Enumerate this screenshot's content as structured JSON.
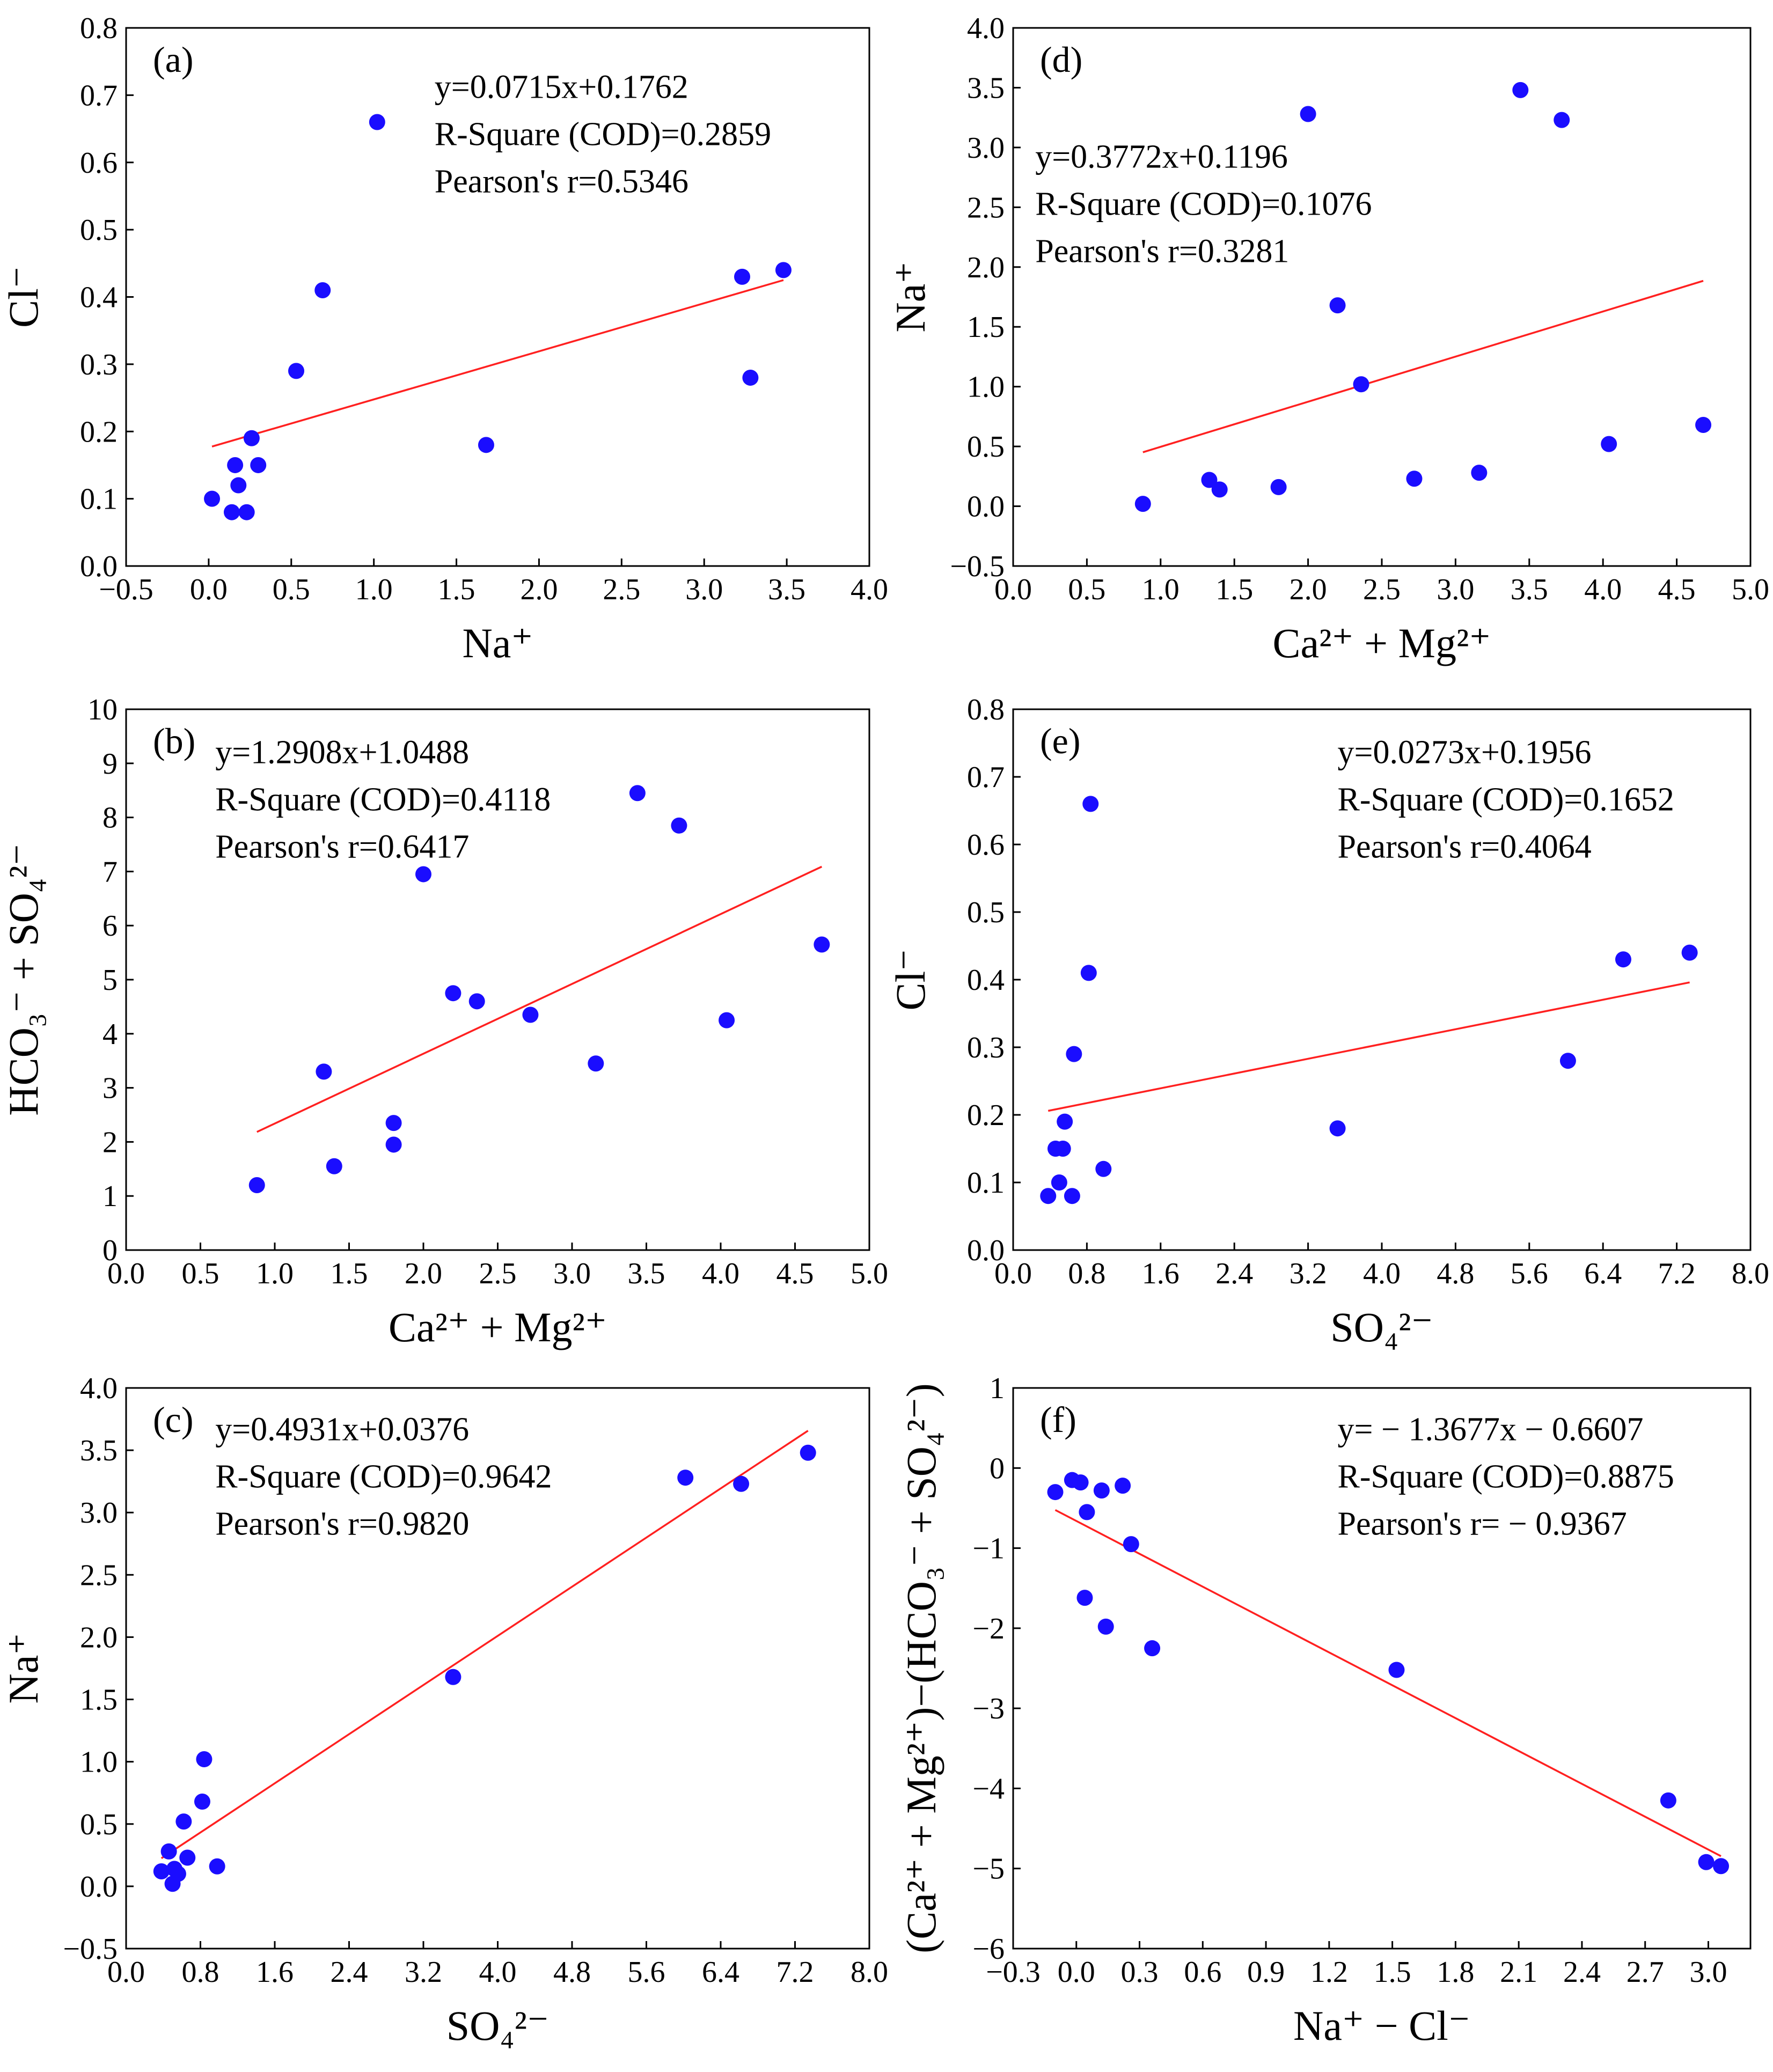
{
  "chart_data": [
    {
      "type": "scatter",
      "panel": "(a)",
      "xlabel": "Na⁺",
      "ylabel": "Cl⁻",
      "xlim": [
        -0.5,
        4.0
      ],
      "ylim": [
        0.0,
        0.8
      ],
      "xticks": [
        -0.5,
        0.0,
        0.5,
        1.0,
        1.5,
        2.0,
        2.5,
        3.0,
        3.5,
        4.0
      ],
      "xtick_labels": [
        "−0.5",
        "0.0",
        "0.5",
        "1.0",
        "1.5",
        "2.0",
        "2.5",
        "3.0",
        "3.5",
        "4.0"
      ],
      "yticks": [
        0.0,
        0.1,
        0.2,
        0.3,
        0.4,
        0.5,
        0.6,
        0.7,
        0.8
      ],
      "ytick_labels": [
        "0.0",
        "0.1",
        "0.2",
        "0.3",
        "0.4",
        "0.5",
        "0.6",
        "0.7",
        "0.8"
      ],
      "points": [
        [
          0.02,
          0.1
        ],
        [
          0.14,
          0.08
        ],
        [
          0.23,
          0.08
        ],
        [
          0.16,
          0.15
        ],
        [
          0.18,
          0.12
        ],
        [
          0.26,
          0.19
        ],
        [
          0.3,
          0.15
        ],
        [
          0.53,
          0.29
        ],
        [
          0.69,
          0.41
        ],
        [
          1.02,
          0.66
        ],
        [
          1.68,
          0.18
        ],
        [
          3.23,
          0.43
        ],
        [
          3.28,
          0.28
        ],
        [
          3.48,
          0.44
        ]
      ],
      "fit": {
        "slope": 0.0715,
        "intercept": 0.1762,
        "x_range": [
          0.02,
          3.48
        ]
      },
      "annotations": [
        "y=0.0715x+0.1762",
        "R-Square (COD)=0.2859",
        "Pearson's r=0.5346"
      ]
    },
    {
      "type": "scatter",
      "panel": "(b)",
      "xlabel": "Ca²⁺ + Mg²⁺",
      "ylabel": "HCO₃⁻ + SO₄²⁻",
      "xlim": [
        0.0,
        5.0
      ],
      "ylim": [
        0,
        10
      ],
      "xticks": [
        0.0,
        0.5,
        1.0,
        1.5,
        2.0,
        2.5,
        3.0,
        3.5,
        4.0,
        4.5,
        5.0
      ],
      "xtick_labels": [
        "0.0",
        "0.5",
        "1.0",
        "1.5",
        "2.0",
        "2.5",
        "3.0",
        "3.5",
        "4.0",
        "4.5",
        "5.0"
      ],
      "yticks": [
        0,
        1,
        2,
        3,
        4,
        5,
        6,
        7,
        8,
        9,
        10
      ],
      "ytick_labels": [
        "0",
        "1",
        "2",
        "3",
        "4",
        "5",
        "6",
        "7",
        "8",
        "9",
        "10"
      ],
      "points": [
        [
          0.88,
          1.2
        ],
        [
          1.33,
          3.3
        ],
        [
          1.4,
          1.55
        ],
        [
          1.8,
          2.35
        ],
        [
          1.8,
          1.95
        ],
        [
          2.0,
          6.95
        ],
        [
          2.2,
          4.75
        ],
        [
          2.36,
          4.6
        ],
        [
          2.72,
          4.35
        ],
        [
          3.16,
          3.45
        ],
        [
          3.44,
          8.45
        ],
        [
          3.72,
          7.85
        ],
        [
          4.04,
          4.25
        ],
        [
          4.68,
          5.65
        ]
      ],
      "fit": {
        "slope": 1.2908,
        "intercept": 1.0488,
        "x_range": [
          0.88,
          4.68
        ]
      },
      "annotations": [
        "y=1.2908x+1.0488",
        "R-Square (COD)=0.4118",
        "Pearson's r=0.6417"
      ]
    },
    {
      "type": "scatter",
      "panel": "(c)",
      "xlabel": "SO₄²⁻",
      "ylabel": "Na⁺",
      "xlim": [
        0.0,
        8.0
      ],
      "ylim": [
        -0.5,
        4.0
      ],
      "xticks": [
        0.0,
        0.8,
        1.6,
        2.4,
        3.2,
        4.0,
        4.8,
        5.6,
        6.4,
        7.2,
        8.0
      ],
      "xtick_labels": [
        "0.0",
        "0.8",
        "1.6",
        "2.4",
        "3.2",
        "4.0",
        "4.8",
        "5.6",
        "6.4",
        "7.2",
        "8.0"
      ],
      "yticks": [
        -0.5,
        0.0,
        0.5,
        1.0,
        1.5,
        2.0,
        2.5,
        3.0,
        3.5,
        4.0
      ],
      "ytick_labels": [
        "−0.5",
        "0.0",
        "0.5",
        "1.0",
        "1.5",
        "2.0",
        "2.5",
        "3.0",
        "3.5",
        "4.0"
      ],
      "points": [
        [
          0.38,
          0.12
        ],
        [
          0.46,
          0.28
        ],
        [
          0.5,
          0.02
        ],
        [
          0.52,
          0.14
        ],
        [
          0.56,
          0.1
        ],
        [
          0.62,
          0.52
        ],
        [
          0.66,
          0.23
        ],
        [
          0.82,
          0.68
        ],
        [
          0.84,
          1.02
        ],
        [
          0.98,
          0.16
        ],
        [
          3.52,
          1.68
        ],
        [
          6.02,
          3.28
        ],
        [
          6.62,
          3.23
        ],
        [
          7.34,
          3.48
        ]
      ],
      "fit": {
        "slope": 0.4931,
        "intercept": 0.0376,
        "x_range": [
          0.38,
          7.34
        ]
      },
      "annotations": [
        "y=0.4931x+0.0376",
        "R-Square (COD)=0.9642",
        "Pearson's r=0.9820"
      ]
    },
    {
      "type": "scatter",
      "panel": "(d)",
      "xlabel": "Ca²⁺ + Mg²⁺",
      "ylabel": "Na⁺",
      "xlim": [
        0.0,
        5.0
      ],
      "ylim": [
        -0.5,
        4.0
      ],
      "xticks": [
        0.0,
        0.5,
        1.0,
        1.5,
        2.0,
        2.5,
        3.0,
        3.5,
        4.0,
        4.5,
        5.0
      ],
      "xtick_labels": [
        "0.0",
        "0.5",
        "1.0",
        "1.5",
        "2.0",
        "2.5",
        "3.0",
        "3.5",
        "4.0",
        "4.5",
        "5.0"
      ],
      "yticks": [
        -0.5,
        0.0,
        0.5,
        1.0,
        1.5,
        2.0,
        2.5,
        3.0,
        3.5,
        4.0
      ],
      "ytick_labels": [
        "−0.5",
        "0.0",
        "0.5",
        "1.0",
        "1.5",
        "2.0",
        "2.5",
        "3.0",
        "3.5",
        "4.0"
      ],
      "points": [
        [
          0.88,
          0.02
        ],
        [
          1.33,
          0.22
        ],
        [
          1.4,
          0.14
        ],
        [
          1.8,
          0.16
        ],
        [
          2.0,
          3.28
        ],
        [
          2.2,
          1.68
        ],
        [
          2.36,
          1.02
        ],
        [
          2.72,
          0.23
        ],
        [
          3.16,
          0.28
        ],
        [
          3.44,
          3.48
        ],
        [
          3.72,
          3.23
        ],
        [
          4.04,
          0.52
        ],
        [
          4.68,
          0.68
        ]
      ],
      "fit": {
        "slope": 0.3772,
        "intercept": 0.1196,
        "x_range": [
          0.88,
          4.68
        ]
      },
      "annotations": [
        "y=0.3772x+0.1196",
        "R-Square (COD)=0.1076",
        "Pearson's r=0.3281"
      ]
    },
    {
      "type": "scatter",
      "panel": "(e)",
      "xlabel": "SO₄²⁻",
      "ylabel": "Cl⁻",
      "xlim": [
        0.0,
        8.0
      ],
      "ylim": [
        0.0,
        0.8
      ],
      "xticks": [
        0.0,
        0.8,
        1.6,
        2.4,
        3.2,
        4.0,
        4.8,
        5.6,
        6.4,
        7.2,
        8.0
      ],
      "xtick_labels": [
        "0.0",
        "0.8",
        "1.6",
        "2.4",
        "3.2",
        "4.0",
        "4.8",
        "5.6",
        "6.4",
        "7.2",
        "8.0"
      ],
      "yticks": [
        0.0,
        0.1,
        0.2,
        0.3,
        0.4,
        0.5,
        0.6,
        0.7,
        0.8
      ],
      "ytick_labels": [
        "0.0",
        "0.1",
        "0.2",
        "0.3",
        "0.4",
        "0.5",
        "0.6",
        "0.7",
        "0.8"
      ],
      "points": [
        [
          0.38,
          0.08
        ],
        [
          0.46,
          0.15
        ],
        [
          0.5,
          0.1
        ],
        [
          0.54,
          0.15
        ],
        [
          0.56,
          0.19
        ],
        [
          0.64,
          0.08
        ],
        [
          0.66,
          0.29
        ],
        [
          0.82,
          0.41
        ],
        [
          0.84,
          0.66
        ],
        [
          0.98,
          0.12
        ],
        [
          3.52,
          0.18
        ],
        [
          6.02,
          0.28
        ],
        [
          6.62,
          0.43
        ],
        [
          7.34,
          0.44
        ]
      ],
      "fit": {
        "slope": 0.0273,
        "intercept": 0.1956,
        "x_range": [
          0.38,
          7.34
        ]
      },
      "annotations": [
        "y=0.0273x+0.1956",
        "R-Square (COD)=0.1652",
        "Pearson's r=0.4064"
      ]
    },
    {
      "type": "scatter",
      "panel": "(f)",
      "xlabel": "Na⁺ − Cl⁻",
      "ylabel": "(Ca²⁺ + Mg²⁺)−(HCO₃⁻ + SO₄²⁻)",
      "xlim": [
        -0.3,
        3.2
      ],
      "ylim": [
        -6,
        1
      ],
      "xticks": [
        -0.3,
        0.0,
        0.3,
        0.6,
        0.9,
        1.2,
        1.5,
        1.8,
        2.1,
        2.4,
        2.7,
        3.0
      ],
      "xtick_labels": [
        "−0.3",
        "0.0",
        "0.3",
        "0.6",
        "0.9",
        "1.2",
        "1.5",
        "1.8",
        "2.1",
        "2.4",
        "2.7",
        "3.0"
      ],
      "yticks": [
        -6,
        -5,
        -4,
        -3,
        -2,
        -1,
        0,
        1
      ],
      "ytick_labels": [
        "−6",
        "−5",
        "−4",
        "−3",
        "−2",
        "−1",
        "0",
        "1"
      ],
      "points": [
        [
          -0.1,
          -0.3
        ],
        [
          -0.02,
          -0.15
        ],
        [
          0.02,
          -0.18
        ],
        [
          0.05,
          -0.55
        ],
        [
          0.04,
          -1.62
        ],
        [
          0.12,
          -0.28
        ],
        [
          0.22,
          -0.22
        ],
        [
          0.26,
          -0.95
        ],
        [
          0.14,
          -1.98
        ],
        [
          0.36,
          -2.25
        ],
        [
          1.52,
          -2.52
        ],
        [
          2.81,
          -4.15
        ],
        [
          2.99,
          -4.92
        ],
        [
          3.06,
          -4.97
        ]
      ],
      "fit": {
        "slope": -1.3677,
        "intercept": -0.6607,
        "x_range": [
          -0.1,
          3.06
        ]
      },
      "annotations": [
        "y= − 1.3677x − 0.6607",
        "R-Square (COD)=0.8875",
        "Pearson's r= − 0.9367"
      ]
    }
  ]
}
